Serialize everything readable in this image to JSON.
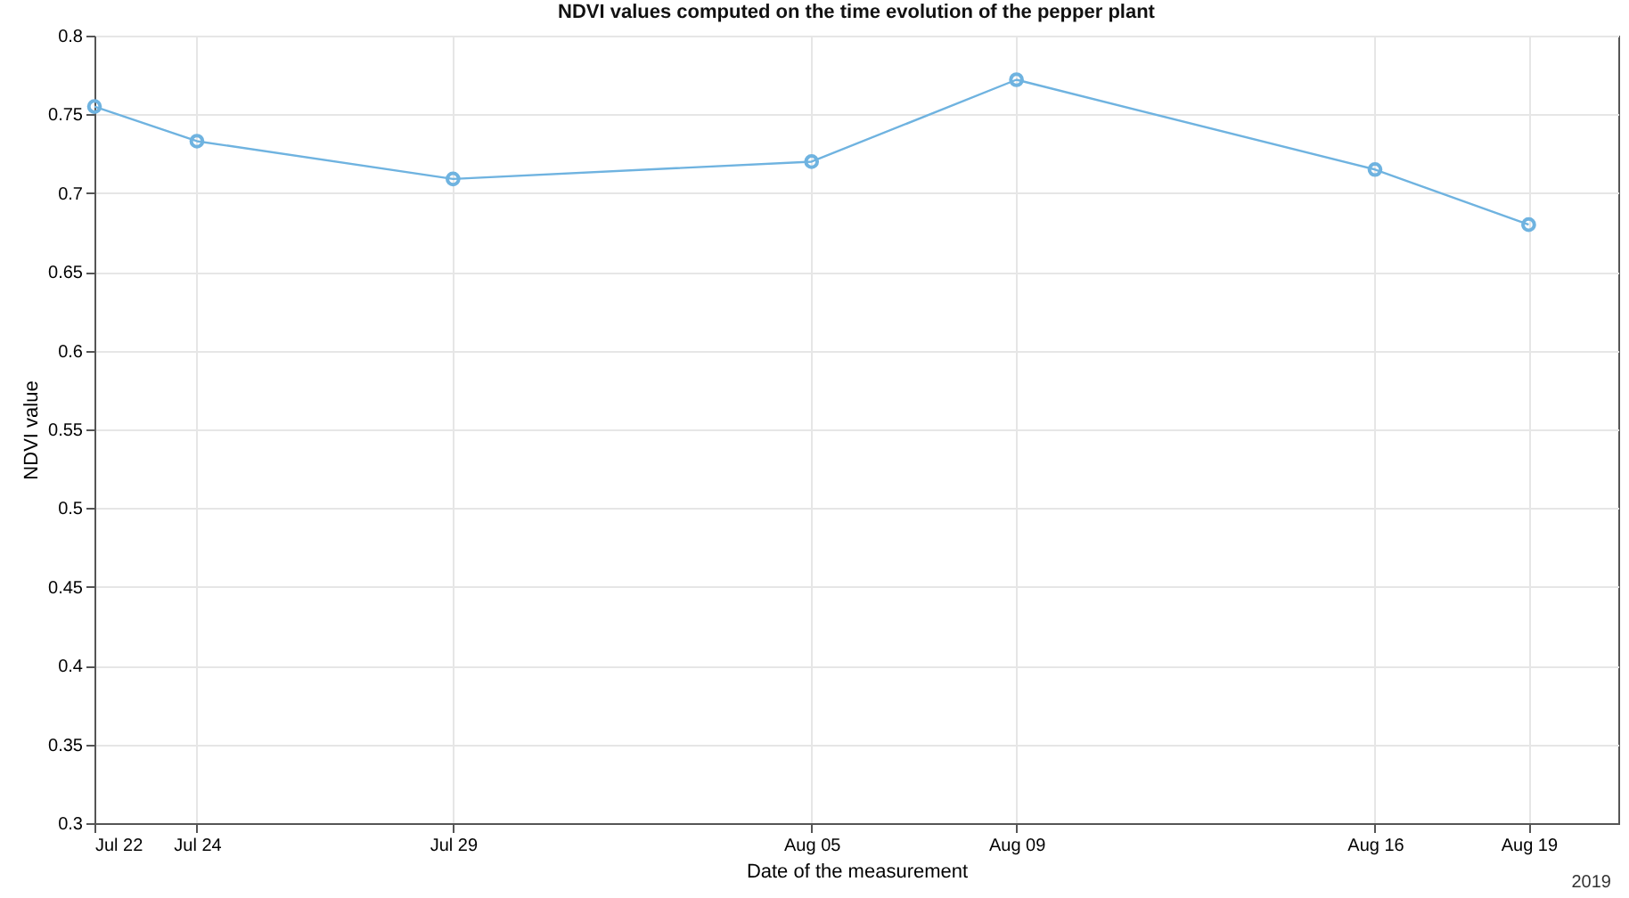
{
  "chart_data": {
    "type": "line",
    "title": "NDVI values computed on the time evolution of the pepper plant",
    "xlabel": "Date of the measurement",
    "ylabel": "NDVI value",
    "annotations": [
      "2019"
    ],
    "x": [
      "2019-07-22",
      "2019-07-24",
      "2019-07-29",
      "2019-08-05",
      "2019-08-09",
      "2019-08-16",
      "2019-08-19"
    ],
    "series": [
      {
        "color": "#6fb3e0",
        "values": [
          0.755,
          0.733,
          0.709,
          0.72,
          0.772,
          0.715,
          0.68
        ]
      }
    ],
    "xlim": [
      "2019-07-22",
      "2019-08-20T18:00"
    ],
    "xticks": [
      {
        "value": "2019-07-22",
        "label": "Jul 22"
      },
      {
        "value": "2019-07-24",
        "label": "Jul 24"
      },
      {
        "value": "2019-07-29",
        "label": "Jul 29"
      },
      {
        "value": "2019-08-05",
        "label": "Aug 05"
      },
      {
        "value": "2019-08-09",
        "label": "Aug 09"
      },
      {
        "value": "2019-08-16",
        "label": "Aug 16"
      },
      {
        "value": "2019-08-19",
        "label": "Aug 19"
      }
    ],
    "ylim": [
      0.3,
      0.8
    ],
    "yticks": [
      0.3,
      0.35,
      0.4,
      0.45,
      0.5,
      0.55,
      0.6,
      0.65,
      0.7,
      0.75,
      0.8
    ],
    "grid": true,
    "marker": "circle",
    "line_style": "solid"
  }
}
